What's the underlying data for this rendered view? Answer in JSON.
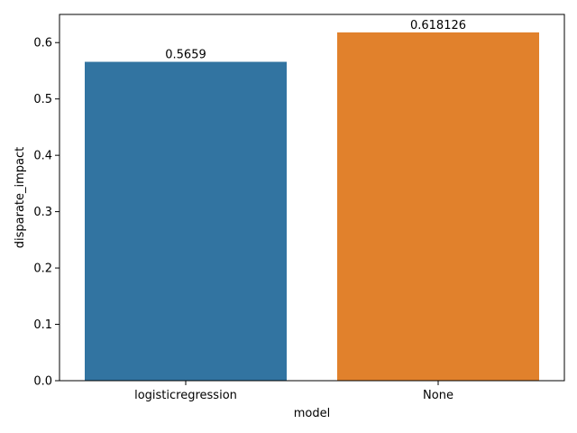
{
  "chart_data": {
    "type": "bar",
    "title": "",
    "xlabel": "model",
    "ylabel": "disparate_impact",
    "categories": [
      "logisticregression",
      "None"
    ],
    "values": [
      0.5659,
      0.618126
    ],
    "value_labels": [
      "0.5659",
      "0.618126"
    ],
    "bar_colors": [
      "#3274a1",
      "#e1812c"
    ],
    "ylim": [
      0,
      0.65
    ],
    "yticks": [
      0.0,
      0.1,
      0.2,
      0.3,
      0.4,
      0.5,
      0.6
    ],
    "ytick_labels": [
      "0.0",
      "0.1",
      "0.2",
      "0.3",
      "0.4",
      "0.5",
      "0.6"
    ],
    "grid": false,
    "legend": "none"
  }
}
